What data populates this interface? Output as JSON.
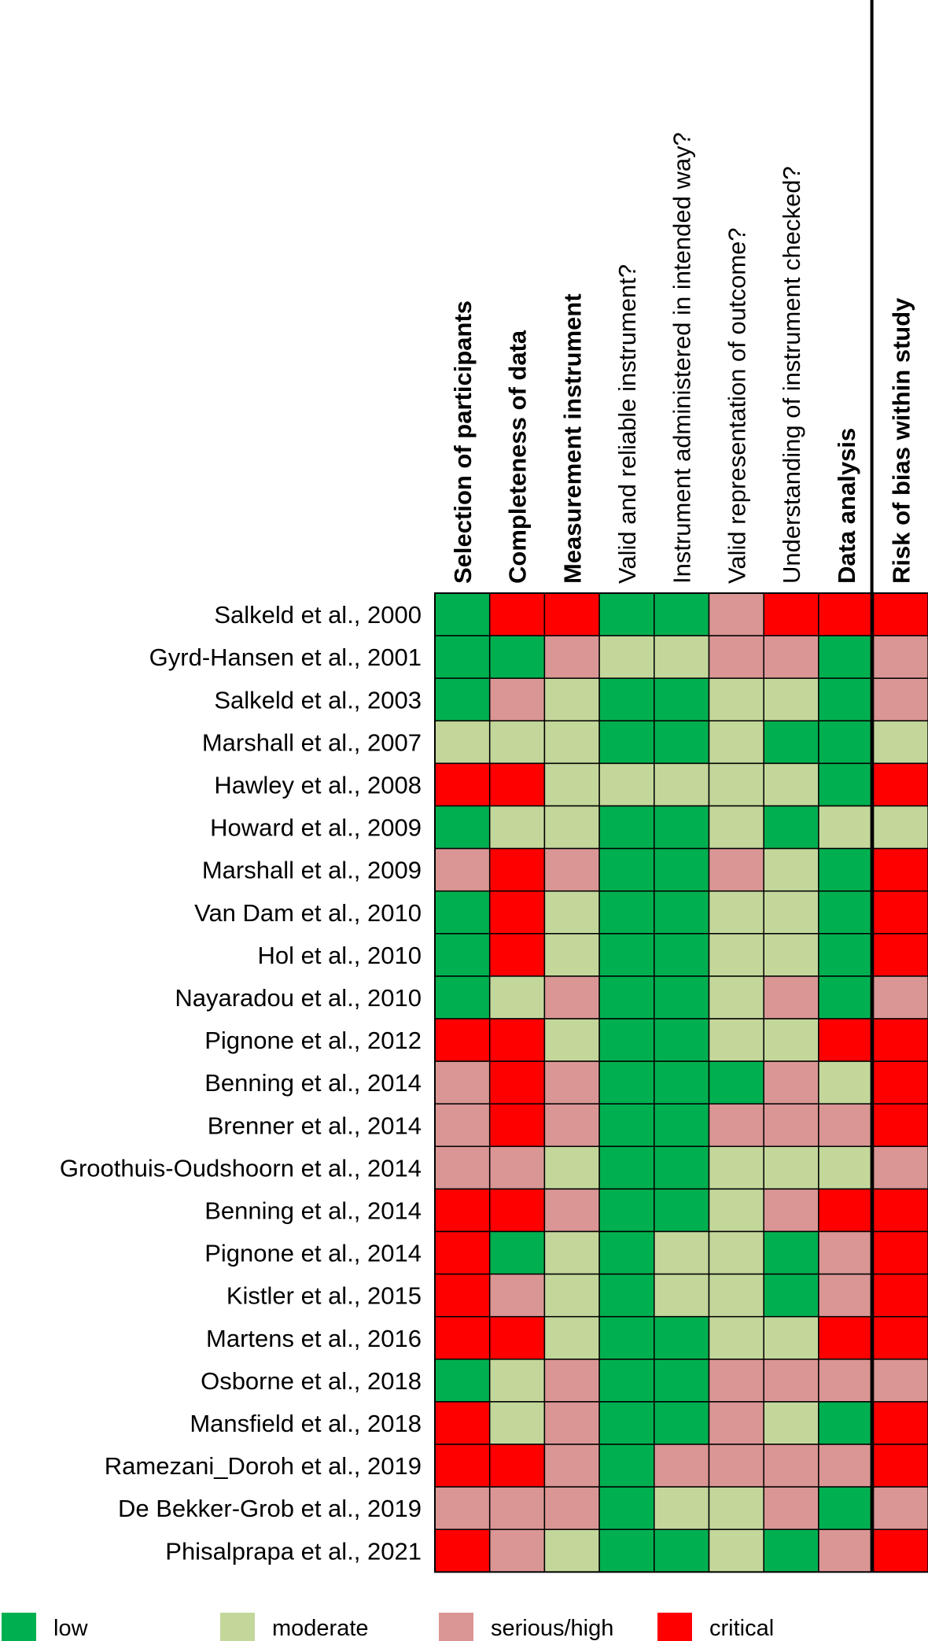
{
  "chart_data": {
    "type": "heatmap",
    "columns": [
      {
        "label": "Selection of participants",
        "bold": true
      },
      {
        "label": "Completeness of data",
        "bold": true
      },
      {
        "label": "Measurement instrument",
        "bold": true
      },
      {
        "label": "Valid and reliable instrument?",
        "bold": false
      },
      {
        "label": "Instrument administered in intended way?",
        "bold": false
      },
      {
        "label": "Valid representation of outcome?",
        "bold": false
      },
      {
        "label": "Understanding of instrument checked?",
        "bold": false
      },
      {
        "label": "Data analysis",
        "bold": true
      },
      {
        "label": "Risk of bias within study",
        "bold": true
      }
    ],
    "rows": [
      {
        "label": "Salkeld et al., 2000",
        "values": [
          "low",
          "critical",
          "critical",
          "low",
          "low",
          "serious/high",
          "critical",
          "critical",
          "critical"
        ]
      },
      {
        "label": "Gyrd-Hansen et al., 2001",
        "values": [
          "low",
          "low",
          "serious/high",
          "moderate",
          "moderate",
          "serious/high",
          "serious/high",
          "low",
          "serious/high"
        ]
      },
      {
        "label": "Salkeld et al., 2003",
        "values": [
          "low",
          "serious/high",
          "moderate",
          "low",
          "low",
          "moderate",
          "moderate",
          "low",
          "serious/high"
        ]
      },
      {
        "label": "Marshall et al., 2007",
        "values": [
          "moderate",
          "moderate",
          "moderate",
          "low",
          "low",
          "moderate",
          "low",
          "low",
          "moderate"
        ]
      },
      {
        "label": "Hawley et al., 2008",
        "values": [
          "critical",
          "critical",
          "moderate",
          "moderate",
          "moderate",
          "moderate",
          "moderate",
          "low",
          "critical"
        ]
      },
      {
        "label": "Howard et al., 2009",
        "values": [
          "low",
          "moderate",
          "moderate",
          "low",
          "low",
          "moderate",
          "low",
          "moderate",
          "moderate"
        ]
      },
      {
        "label": "Marshall et al., 2009",
        "values": [
          "serious/high",
          "critical",
          "serious/high",
          "low",
          "low",
          "serious/high",
          "moderate",
          "low",
          "critical"
        ]
      },
      {
        "label": "Van Dam et al., 2010",
        "values": [
          "low",
          "critical",
          "moderate",
          "low",
          "low",
          "moderate",
          "moderate",
          "low",
          "critical"
        ]
      },
      {
        "label": "Hol et al., 2010",
        "values": [
          "low",
          "critical",
          "moderate",
          "low",
          "low",
          "moderate",
          "moderate",
          "low",
          "critical"
        ]
      },
      {
        "label": "Nayaradou et al., 2010",
        "values": [
          "low",
          "moderate",
          "serious/high",
          "low",
          "low",
          "moderate",
          "serious/high",
          "low",
          "serious/high"
        ]
      },
      {
        "label": "Pignone et al., 2012",
        "values": [
          "critical",
          "critical",
          "moderate",
          "low",
          "low",
          "moderate",
          "moderate",
          "critical",
          "critical"
        ]
      },
      {
        "label": "Benning et al., 2014",
        "values": [
          "serious/high",
          "critical",
          "serious/high",
          "low",
          "low",
          "low",
          "serious/high",
          "moderate",
          "critical"
        ]
      },
      {
        "label": "Brenner et al., 2014",
        "values": [
          "serious/high",
          "critical",
          "serious/high",
          "low",
          "low",
          "serious/high",
          "serious/high",
          "serious/high",
          "critical"
        ]
      },
      {
        "label": "Groothuis-Oudshoorn et al., 2014",
        "values": [
          "serious/high",
          "serious/high",
          "moderate",
          "low",
          "low",
          "moderate",
          "moderate",
          "moderate",
          "serious/high"
        ]
      },
      {
        "label": "Benning et al., 2014",
        "values": [
          "critical",
          "critical",
          "serious/high",
          "low",
          "low",
          "moderate",
          "serious/high",
          "critical",
          "critical"
        ]
      },
      {
        "label": "Pignone et al., 2014",
        "values": [
          "critical",
          "low",
          "moderate",
          "low",
          "moderate",
          "moderate",
          "low",
          "serious/high",
          "critical"
        ]
      },
      {
        "label": "Kistler et al., 2015",
        "values": [
          "critical",
          "serious/high",
          "moderate",
          "low",
          "moderate",
          "moderate",
          "low",
          "serious/high",
          "critical"
        ]
      },
      {
        "label": "Martens et al., 2016",
        "values": [
          "critical",
          "critical",
          "moderate",
          "low",
          "low",
          "moderate",
          "moderate",
          "critical",
          "critical"
        ]
      },
      {
        "label": "Osborne et al., 2018",
        "values": [
          "low",
          "moderate",
          "serious/high",
          "low",
          "low",
          "serious/high",
          "serious/high",
          "serious/high",
          "serious/high"
        ]
      },
      {
        "label": "Mansfield et al., 2018",
        "values": [
          "critical",
          "moderate",
          "serious/high",
          "low",
          "low",
          "serious/high",
          "moderate",
          "low",
          "critical"
        ]
      },
      {
        "label": "Ramezani_Doroh et al., 2019",
        "values": [
          "critical",
          "critical",
          "serious/high",
          "low",
          "serious/high",
          "serious/high",
          "serious/high",
          "serious/high",
          "critical"
        ]
      },
      {
        "label": "De Bekker-Grob et al., 2019",
        "values": [
          "serious/high",
          "serious/high",
          "serious/high",
          "low",
          "moderate",
          "moderate",
          "serious/high",
          "low",
          "serious/high"
        ]
      },
      {
        "label": "Phisalprapa et al., 2021",
        "values": [
          "critical",
          "serious/high",
          "moderate",
          "low",
          "low",
          "moderate",
          "low",
          "serious/high",
          "critical"
        ]
      }
    ],
    "legend": [
      {
        "key": "low",
        "label": "low",
        "color": "#00b050"
      },
      {
        "key": "moderate",
        "label": "moderate",
        "color": "#c4d79b"
      },
      {
        "key": "serious/high",
        "label": "serious/high",
        "color": "#da9694"
      },
      {
        "key": "critical",
        "label": "critical",
        "color": "#ff0000"
      }
    ],
    "legend_position": "bottom"
  }
}
